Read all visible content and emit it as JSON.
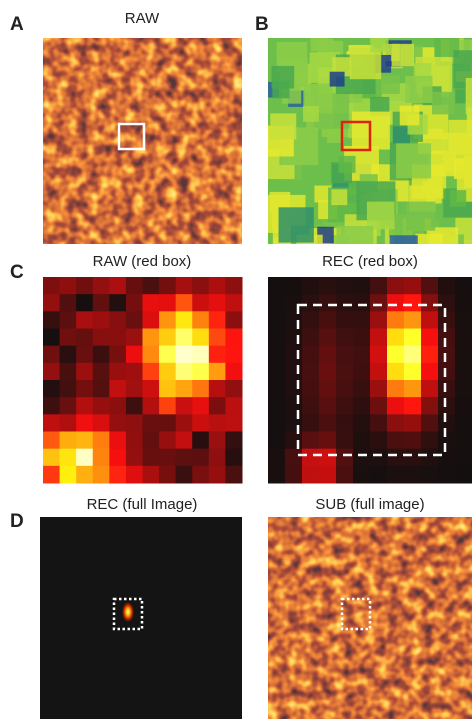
{
  "panels": [
    {
      "label": "A",
      "title": "RAW"
    },
    {
      "label": "B"
    },
    {
      "label": "C",
      "titles": [
        "RAW (red box)",
        "REC (red box)"
      ]
    },
    {
      "label": "D",
      "titles": [
        "REC (full Image)",
        "SUB (full image)"
      ]
    }
  ]
}
